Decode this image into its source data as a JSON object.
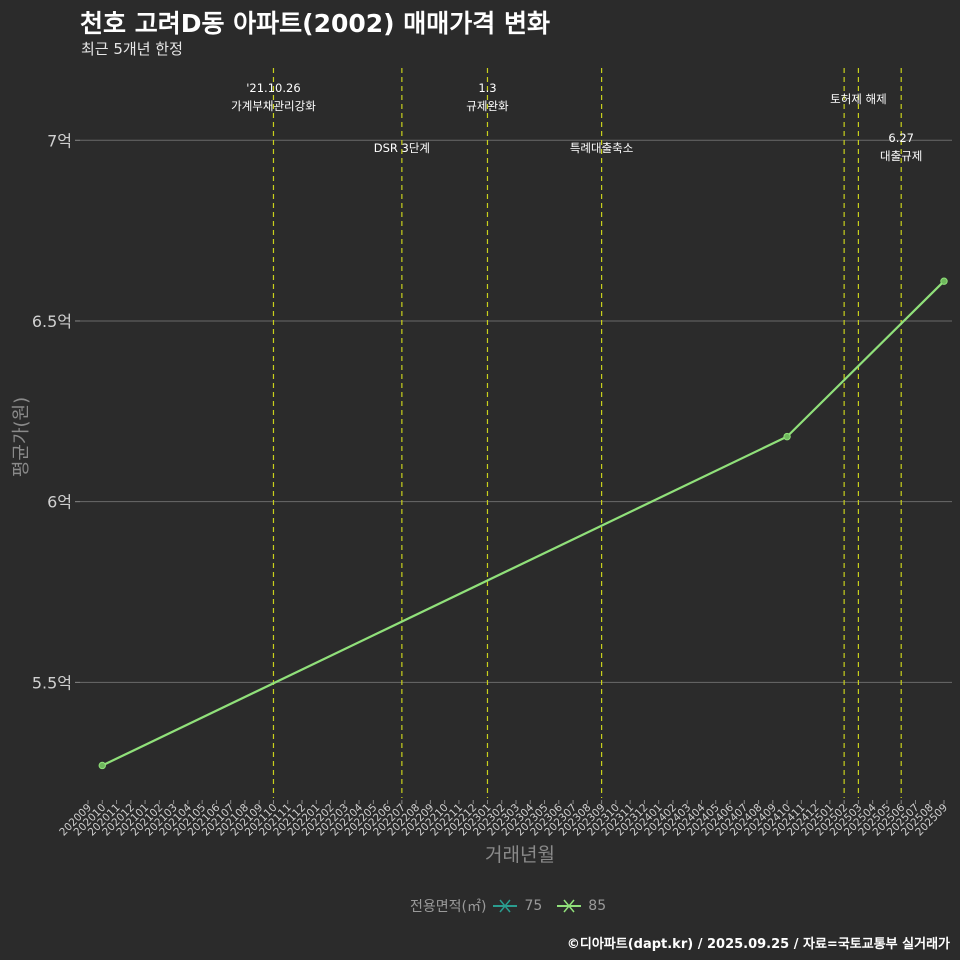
{
  "title": "천호 고려D동 아파트(2002) 매매가격 변화",
  "subtitle": "최근 5개년 한정",
  "caption": "©디아파트(dapt.kr) / 2025.09.25 / 자료=국토교통부 실거래가",
  "chart_data": {
    "type": "line",
    "xlabel": "거래년월",
    "ylabel": "평균가(원)",
    "ylim": [
      5.18,
      7.2
    ],
    "y_ticks": [
      {
        "value": 5.5,
        "label": "5.5억"
      },
      {
        "value": 6.0,
        "label": "6억"
      },
      {
        "value": 6.5,
        "label": "6.5억"
      },
      {
        "value": 7.0,
        "label": "7억"
      }
    ],
    "categories": [
      "202009",
      "202010",
      "202011",
      "202012",
      "202101",
      "202102",
      "202103",
      "202104",
      "202105",
      "202106",
      "202107",
      "202108",
      "202109",
      "202110",
      "202111",
      "202112",
      "202201",
      "202202",
      "202203",
      "202204",
      "202205",
      "202206",
      "202207",
      "202208",
      "202209",
      "202210",
      "202211",
      "202212",
      "202301",
      "202302",
      "202303",
      "202304",
      "202305",
      "202306",
      "202307",
      "202308",
      "202309",
      "202310",
      "202311",
      "202312",
      "202401",
      "202402",
      "202403",
      "202404",
      "202405",
      "202406",
      "202407",
      "202408",
      "202409",
      "202410",
      "202411",
      "202412",
      "202501",
      "202502",
      "202503",
      "202504",
      "202505",
      "202506",
      "202507",
      "202508",
      "202509"
    ],
    "legend": {
      "title": "전용면적(㎡)",
      "items": [
        {
          "name": "75",
          "color": "#2a9d8f"
        },
        {
          "name": "85",
          "color": "#90e07a"
        }
      ]
    },
    "series": [
      {
        "name": "85",
        "color": "#90e07a",
        "points": [
          {
            "x": "202010",
            "y": 5.27
          },
          {
            "x": "202410",
            "y": 6.18
          },
          {
            "x": "202509",
            "y": 6.61
          }
        ]
      }
    ],
    "events": [
      {
        "x": "202110",
        "lines": [
          "'21.10.26",
          "가계부채관리강화"
        ],
        "row": 0
      },
      {
        "x": "202207",
        "lines": [
          "DSR 3단계"
        ],
        "row": 1
      },
      {
        "x": "202301",
        "lines": [
          "1.3",
          "규제완화"
        ],
        "row": 0
      },
      {
        "x": "202309",
        "lines": [
          "특례대출축소"
        ],
        "row": 1
      },
      {
        "x": "202502",
        "lines": [
          ""
        ],
        "row": 0
      },
      {
        "x": "202503",
        "lines": [
          "토허제 해제"
        ],
        "row": 0
      },
      {
        "x": "202506",
        "lines": [
          "6.27",
          "대출규제"
        ],
        "row": 2
      }
    ],
    "colors": {
      "background": "#2b2b2b",
      "grid": "#6a6a6a",
      "event_line": "#c8d01c",
      "axis_text": "#d0d0d0"
    }
  }
}
